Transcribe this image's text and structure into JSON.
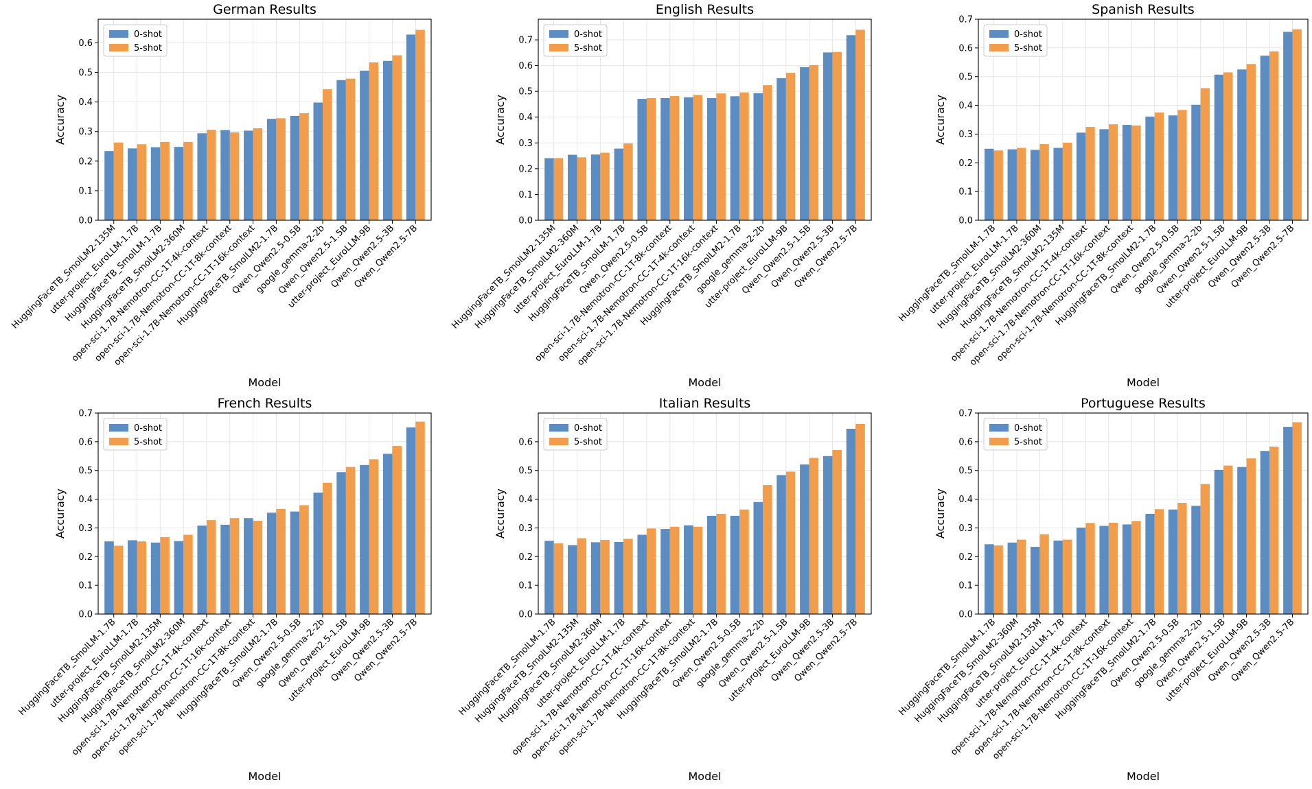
{
  "colors": {
    "zero_shot": "#5b8cc2",
    "five_shot": "#f29d4b",
    "grid": "#e6e6e6",
    "axis": "#000000"
  },
  "chart_data": [
    {
      "type": "bar",
      "title": "German Results",
      "xlabel": "Model",
      "ylabel": "Accuracy",
      "ylim": [
        0,
        0.68
      ],
      "yticks": [
        0.0,
        0.1,
        0.2,
        0.3,
        0.4,
        0.5,
        0.6
      ],
      "ytick_labels": [
        "0.0",
        "0.1",
        "0.2",
        "0.3",
        "0.4",
        "0.5",
        "0.6"
      ],
      "legend": [
        "0-shot",
        "5-shot"
      ],
      "categories": [
        "HuggingFaceTB_SmolLM2-135M",
        "utter-project_EuroLLM-1.7B",
        "HuggingFaceTB_SmolLM-1.7B",
        "HuggingFaceTB_SmolLM2-360M",
        "open-sci-1.7B-Nemotron-CC-1T-4k-context",
        "open-sci-1.7B-Nemotron-CC-1T-8k-context",
        "open-sci-1.7B-Nemotron-CC-1T-16k-context",
        "HuggingFaceTB_SmolLM2-1.7B",
        "Qwen_Qwen2.5-0.5B",
        "google_gemma-2-2b",
        "Qwen_Qwen2.5-1.5B",
        "utter-project_EuroLLM-9B",
        "Qwen_Qwen2.5-3B",
        "Qwen_Qwen2.5-7B"
      ],
      "series": [
        {
          "name": "0-shot",
          "values": [
            0.234,
            0.243,
            0.247,
            0.248,
            0.294,
            0.305,
            0.303,
            0.343,
            0.353,
            0.398,
            0.474,
            0.506,
            0.539,
            0.628
          ]
        },
        {
          "name": "5-shot",
          "values": [
            0.263,
            0.257,
            0.265,
            0.265,
            0.306,
            0.297,
            0.311,
            0.345,
            0.362,
            0.443,
            0.479,
            0.534,
            0.558,
            0.644
          ]
        }
      ]
    },
    {
      "type": "bar",
      "title": "English Results",
      "xlabel": "Model",
      "ylabel": "Accuracy",
      "ylim": [
        0,
        0.78
      ],
      "yticks": [
        0.0,
        0.1,
        0.2,
        0.3,
        0.4,
        0.5,
        0.6,
        0.7
      ],
      "ytick_labels": [
        "0.0",
        "0.1",
        "0.2",
        "0.3",
        "0.4",
        "0.5",
        "0.6",
        "0.7"
      ],
      "legend": [
        "0-shot",
        "5-shot"
      ],
      "categories": [
        "HuggingFaceTB_SmolLM2-135M",
        "HuggingFaceTB_SmolLM2-360M",
        "utter-project_EuroLLM-1.7B",
        "HuggingFaceTB_SmolLM-1.7B",
        "Qwen_Qwen2.5-0.5B",
        "open-sci-1.7B-Nemotron-CC-1T-8k-context",
        "open-sci-1.7B-Nemotron-CC-1T-4k-context",
        "open-sci-1.7B-Nemotron-CC-1T-16k-context",
        "HuggingFaceTB_SmolLM2-1.7B",
        "google_gemma-2-2b",
        "utter-project_EuroLLM-9B",
        "Qwen_Qwen2.5-1.5B",
        "Qwen_Qwen2.5-3B",
        "Qwen_Qwen2.5-7B"
      ],
      "series": [
        {
          "name": "0-shot",
          "values": [
            0.241,
            0.254,
            0.255,
            0.278,
            0.471,
            0.474,
            0.477,
            0.474,
            0.481,
            0.493,
            0.551,
            0.594,
            0.651,
            0.718
          ]
        },
        {
          "name": "5-shot",
          "values": [
            0.241,
            0.244,
            0.262,
            0.298,
            0.474,
            0.482,
            0.486,
            0.492,
            0.496,
            0.524,
            0.572,
            0.602,
            0.653,
            0.739
          ]
        }
      ]
    },
    {
      "type": "bar",
      "title": "Spanish Results",
      "xlabel": "Model",
      "ylabel": "Accuracy",
      "ylim": [
        0,
        0.7
      ],
      "yticks": [
        0.0,
        0.1,
        0.2,
        0.3,
        0.4,
        0.5,
        0.6,
        0.7
      ],
      "ytick_labels": [
        "0.0",
        "0.1",
        "0.2",
        "0.3",
        "0.4",
        "0.5",
        "0.6",
        "0.7"
      ],
      "legend": [
        "0-shot",
        "5-shot"
      ],
      "categories": [
        "HuggingFaceTB_SmolLM-1.7B",
        "utter-project_EuroLLM-1.7B",
        "HuggingFaceTB_SmolLM2-360M",
        "HuggingFaceTB_SmolLM2-135M",
        "open-sci-1.7B-Nemotron-CC-1T-4k-context",
        "open-sci-1.7B-Nemotron-CC-1T-16k-context",
        "open-sci-1.7B-Nemotron-CC-1T-8k-context",
        "HuggingFaceTB_SmolLM2-1.7B",
        "Qwen_Qwen2.5-0.5B",
        "google_gemma-2-2b",
        "Qwen_Qwen2.5-1.5B",
        "utter-project_EuroLLM-9B",
        "Qwen_Qwen2.5-3B",
        "Qwen_Qwen2.5-7B"
      ],
      "series": [
        {
          "name": "0-shot",
          "values": [
            0.249,
            0.247,
            0.245,
            0.252,
            0.305,
            0.317,
            0.332,
            0.361,
            0.365,
            0.402,
            0.507,
            0.525,
            0.573,
            0.656
          ]
        },
        {
          "name": "5-shot",
          "values": [
            0.243,
            0.252,
            0.265,
            0.27,
            0.325,
            0.334,
            0.33,
            0.375,
            0.384,
            0.46,
            0.515,
            0.544,
            0.588,
            0.665
          ]
        }
      ]
    },
    {
      "type": "bar",
      "title": "French Results",
      "xlabel": "Model",
      "ylabel": "Accuracy",
      "ylim": [
        0,
        0.7
      ],
      "yticks": [
        0.0,
        0.1,
        0.2,
        0.3,
        0.4,
        0.5,
        0.6,
        0.7
      ],
      "ytick_labels": [
        "0.0",
        "0.1",
        "0.2",
        "0.3",
        "0.4",
        "0.5",
        "0.6",
        "0.7"
      ],
      "legend": [
        "0-shot",
        "5-shot"
      ],
      "categories": [
        "HuggingFaceTB_SmolLM-1.7B",
        "utter-project_EuroLLM-1.7B",
        "HuggingFaceTB_SmolLM2-135M",
        "HuggingFaceTB_SmolLM2-360M",
        "open-sci-1.7B-Nemotron-CC-1T-4k-context",
        "open-sci-1.7B-Nemotron-CC-1T-16k-context",
        "open-sci-1.7B-Nemotron-CC-1T-8k-context",
        "HuggingFaceTB_SmolLM2-1.7B",
        "Qwen_Qwen2.5-0.5B",
        "google_gemma-2-2b",
        "Qwen_Qwen2.5-1.5B",
        "utter-project_EuroLLM-9B",
        "Qwen_Qwen2.5-3B",
        "Qwen_Qwen2.5-7B"
      ],
      "series": [
        {
          "name": "0-shot",
          "values": [
            0.253,
            0.257,
            0.249,
            0.254,
            0.308,
            0.311,
            0.334,
            0.353,
            0.357,
            0.423,
            0.494,
            0.519,
            0.558,
            0.65
          ]
        },
        {
          "name": "5-shot",
          "values": [
            0.238,
            0.253,
            0.268,
            0.276,
            0.327,
            0.334,
            0.325,
            0.366,
            0.379,
            0.457,
            0.512,
            0.539,
            0.585,
            0.67
          ]
        }
      ]
    },
    {
      "type": "bar",
      "title": "Italian Results",
      "xlabel": "Model",
      "ylabel": "Accuracy",
      "ylim": [
        0,
        0.7
      ],
      "yticks": [
        0.0,
        0.1,
        0.2,
        0.3,
        0.4,
        0.5,
        0.6
      ],
      "ytick_labels": [
        "0.0",
        "0.1",
        "0.2",
        "0.3",
        "0.4",
        "0.5",
        "0.6"
      ],
      "legend": [
        "0-shot",
        "5-shot"
      ],
      "categories": [
        "HuggingFaceTB_SmolLM-1.7B",
        "HuggingFaceTB_SmolLM2-135M",
        "HuggingFaceTB_SmolLM2-360M",
        "utter-project_EuroLLM-1.7B",
        "open-sci-1.7B-Nemotron-CC-1T-4k-context",
        "open-sci-1.7B-Nemotron-CC-1T-16k-context",
        "open-sci-1.7B-Nemotron-CC-1T-8k-context",
        "HuggingFaceTB_SmolLM2-1.7B",
        "Qwen_Qwen2.5-0.5B",
        "google_gemma-2-2b",
        "Qwen_Qwen2.5-1.5B",
        "utter-project_EuroLLM-9B",
        "Qwen_Qwen2.5-3B",
        "Qwen_Qwen2.5-7B"
      ],
      "series": [
        {
          "name": "0-shot",
          "values": [
            0.255,
            0.24,
            0.25,
            0.251,
            0.276,
            0.296,
            0.309,
            0.342,
            0.342,
            0.39,
            0.484,
            0.521,
            0.55,
            0.645
          ]
        },
        {
          "name": "5-shot",
          "values": [
            0.246,
            0.264,
            0.258,
            0.262,
            0.298,
            0.304,
            0.304,
            0.349,
            0.364,
            0.449,
            0.496,
            0.544,
            0.571,
            0.662
          ]
        }
      ]
    },
    {
      "type": "bar",
      "title": "Portuguese Results",
      "xlabel": "Model",
      "ylabel": "Accuracy",
      "ylim": [
        0,
        0.7
      ],
      "yticks": [
        0.0,
        0.1,
        0.2,
        0.3,
        0.4,
        0.5,
        0.6,
        0.7
      ],
      "ytick_labels": [
        "0.0",
        "0.1",
        "0.2",
        "0.3",
        "0.4",
        "0.5",
        "0.6",
        "0.7"
      ],
      "legend": [
        "0-shot",
        "5-shot"
      ],
      "categories": [
        "HuggingFaceTB_SmolLM-1.7B",
        "HuggingFaceTB_SmolLM2-360M",
        "HuggingFaceTB_SmolLM2-135M",
        "utter-project_EuroLLM-1.7B",
        "open-sci-1.7B-Nemotron-CC-1T-4k-context",
        "open-sci-1.7B-Nemotron-CC-1T-8k-context",
        "open-sci-1.7B-Nemotron-CC-1T-16k-context",
        "HuggingFaceTB_SmolLM2-1.7B",
        "Qwen_Qwen2.5-0.5B",
        "google_gemma-2-2b",
        "Qwen_Qwen2.5-1.5B",
        "utter-project_EuroLLM-9B",
        "Qwen_Qwen2.5-3B",
        "Qwen_Qwen2.5-7B"
      ],
      "series": [
        {
          "name": "0-shot",
          "values": [
            0.243,
            0.249,
            0.234,
            0.256,
            0.301,
            0.307,
            0.312,
            0.349,
            0.364,
            0.377,
            0.502,
            0.512,
            0.568,
            0.652
          ]
        },
        {
          "name": "5-shot",
          "values": [
            0.239,
            0.259,
            0.278,
            0.259,
            0.317,
            0.318,
            0.324,
            0.365,
            0.387,
            0.453,
            0.517,
            0.542,
            0.583,
            0.668
          ]
        }
      ]
    }
  ]
}
